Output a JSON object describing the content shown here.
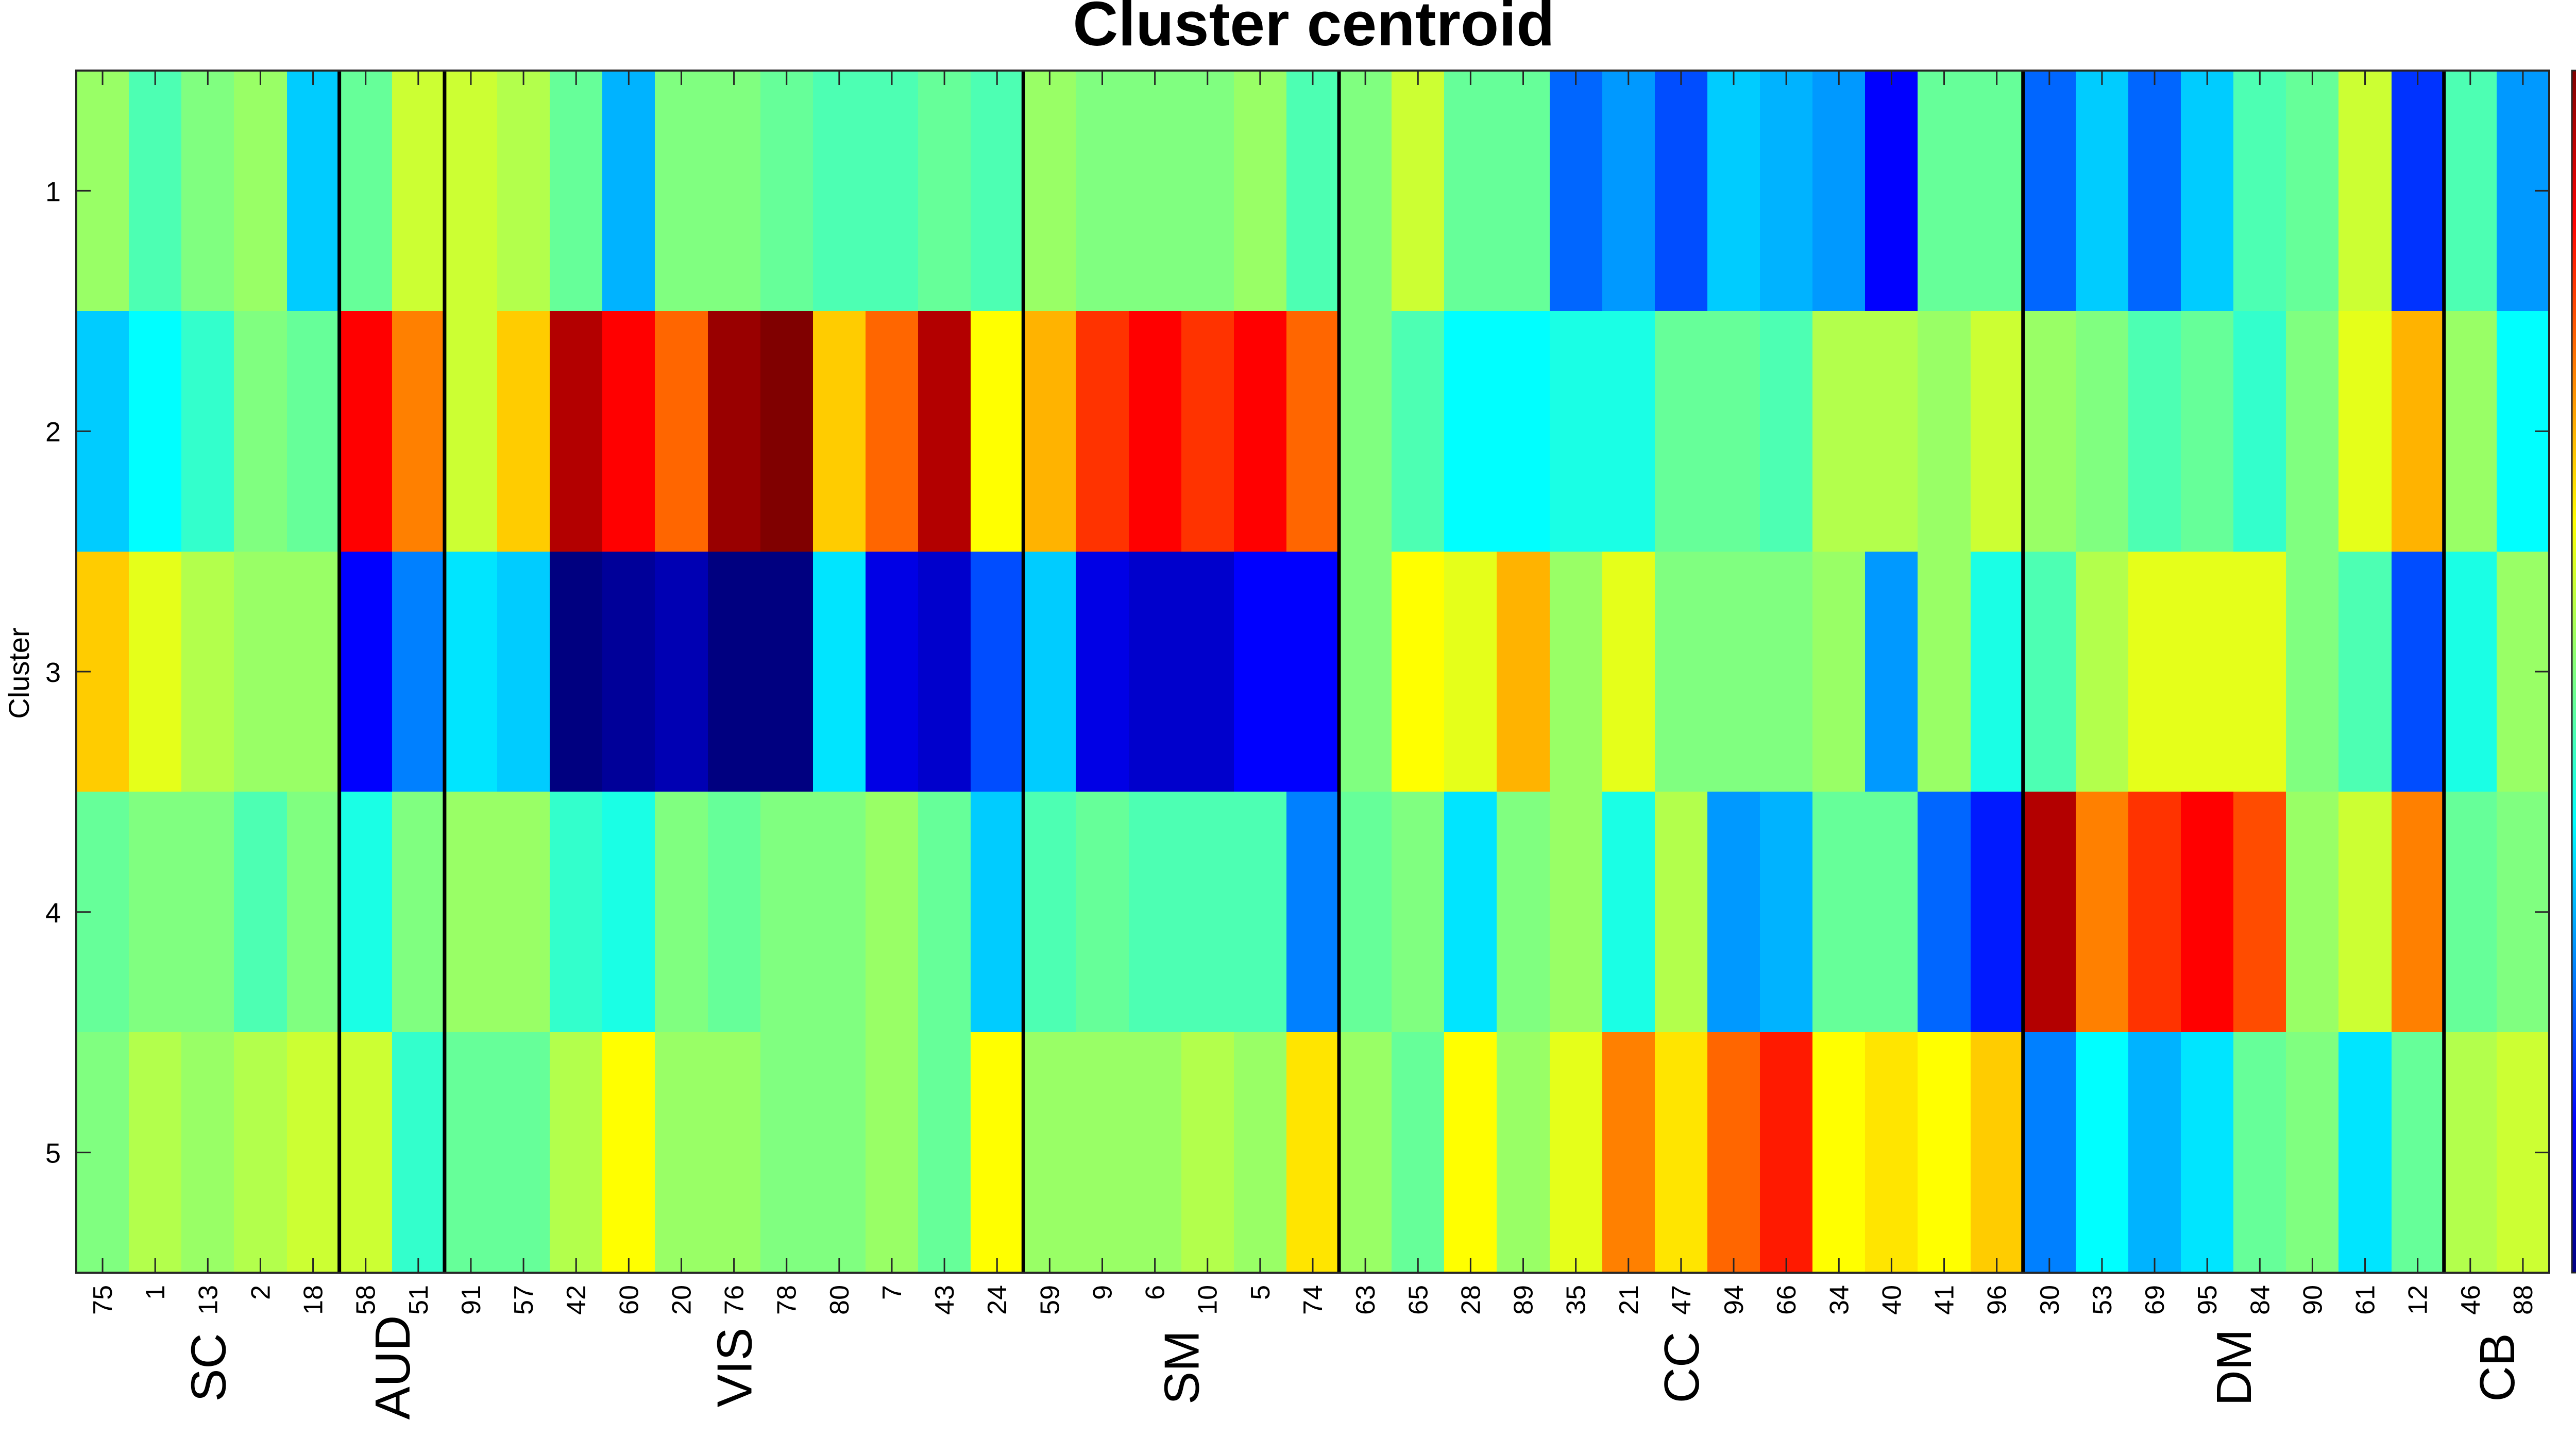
{
  "chart_data": {
    "type": "heatmap",
    "title": "Cluster centroid",
    "ylabel": "Cluster",
    "xlabel": "",
    "rows": [
      "1",
      "2",
      "3",
      "4",
      "5"
    ],
    "columns": [
      "75",
      "1",
      "13",
      "2",
      "18",
      "58",
      "51",
      "91",
      "57",
      "42",
      "60",
      "20",
      "76",
      "78",
      "80",
      "7",
      "43",
      "24",
      "59",
      "9",
      "6",
      "10",
      "5",
      "74",
      "63",
      "65",
      "28",
      "89",
      "35",
      "21",
      "47",
      "94",
      "66",
      "34",
      "40",
      "41",
      "96",
      "30",
      "53",
      "69",
      "95",
      "84",
      "90",
      "61",
      "12",
      "46",
      "88"
    ],
    "groups": [
      {
        "name": "SC",
        "count": 5
      },
      {
        "name": "AUD",
        "count": 2
      },
      {
        "name": "VIS",
        "count": 11
      },
      {
        "name": "SM",
        "count": 6
      },
      {
        "name": "CC",
        "count": 13
      },
      {
        "name": "DM",
        "count": 8
      },
      {
        "name": "CB",
        "count": 2
      }
    ],
    "values": [
      [
        0.05,
        -0.1,
        0.0,
        0.05,
        -0.35,
        -0.05,
        0.15,
        0.15,
        0.1,
        -0.05,
        -0.4,
        0.0,
        0.0,
        -0.05,
        -0.1,
        -0.1,
        -0.05,
        -0.1,
        0.05,
        0.0,
        0.0,
        0.0,
        0.05,
        -0.1,
        0.0,
        0.15,
        -0.05,
        -0.05,
        -0.55,
        -0.45,
        -0.6,
        -0.35,
        -0.4,
        -0.45,
        -0.75,
        -0.05,
        -0.05,
        -0.55,
        -0.35,
        -0.55,
        -0.35,
        -0.1,
        -0.05,
        0.15,
        -0.65,
        -0.1,
        -0.45
      ],
      [
        -0.35,
        -0.25,
        -0.15,
        0.0,
        -0.05,
        0.75,
        0.5,
        0.15,
        0.35,
        0.9,
        0.75,
        0.55,
        0.95,
        1.0,
        0.35,
        0.55,
        0.9,
        0.25,
        0.4,
        0.65,
        0.75,
        0.65,
        0.75,
        0.55,
        0.0,
        -0.1,
        -0.25,
        -0.25,
        -0.2,
        -0.2,
        -0.05,
        -0.05,
        -0.1,
        0.1,
        0.1,
        0.05,
        0.15,
        0.05,
        0.0,
        -0.1,
        -0.05,
        -0.15,
        0.0,
        0.2,
        0.4,
        0.05,
        -0.25
      ],
      [
        0.35,
        0.2,
        0.1,
        0.05,
        0.05,
        -0.75,
        -0.5,
        -0.3,
        -0.35,
        -1.0,
        -0.95,
        -0.9,
        -1.0,
        -1.0,
        -0.3,
        -0.8,
        -0.85,
        -0.6,
        -0.35,
        -0.8,
        -0.85,
        -0.85,
        -0.75,
        -0.75,
        0.0,
        0.25,
        0.2,
        0.4,
        0.05,
        0.2,
        0.0,
        0.0,
        0.0,
        0.05,
        -0.45,
        0.05,
        -0.2,
        -0.1,
        0.1,
        0.2,
        0.2,
        0.2,
        0.0,
        -0.1,
        -0.6,
        -0.2,
        0.05
      ],
      [
        -0.05,
        0.0,
        0.0,
        -0.1,
        0.0,
        -0.2,
        0.0,
        0.05,
        0.05,
        -0.15,
        -0.2,
        0.0,
        -0.05,
        0.0,
        0.0,
        0.05,
        -0.05,
        -0.35,
        -0.1,
        -0.05,
        -0.1,
        -0.1,
        -0.1,
        -0.5,
        -0.05,
        0.0,
        -0.3,
        0.0,
        0.05,
        -0.2,
        0.1,
        -0.45,
        -0.4,
        -0.05,
        -0.05,
        -0.55,
        -0.7,
        0.9,
        0.5,
        0.65,
        0.75,
        0.6,
        0.05,
        0.15,
        0.5,
        -0.05,
        0.0
      ],
      [
        0.0,
        0.1,
        0.05,
        0.1,
        0.15,
        0.15,
        -0.15,
        -0.05,
        -0.05,
        0.1,
        0.25,
        0.05,
        0.05,
        0.0,
        0.0,
        0.05,
        -0.05,
        0.25,
        0.05,
        0.05,
        0.05,
        0.1,
        0.05,
        0.3,
        0.05,
        -0.05,
        0.25,
        0.05,
        0.2,
        0.5,
        0.3,
        0.55,
        0.7,
        0.25,
        0.3,
        0.25,
        0.35,
        -0.5,
        -0.25,
        -0.4,
        -0.3,
        -0.05,
        0.0,
        -0.3,
        -0.05,
        0.1,
        0.15
      ]
    ],
    "clim": [
      -1,
      1
    ],
    "colormap": "jet",
    "colorbar_ticks": [
      "1",
      "0.8",
      "0.6",
      "0.4",
      "0.2",
      "0",
      "-0.2",
      "-0.4",
      "-0.6",
      "-0.8",
      "-1"
    ],
    "separator_color": "#000000",
    "legend_placement": "right"
  }
}
